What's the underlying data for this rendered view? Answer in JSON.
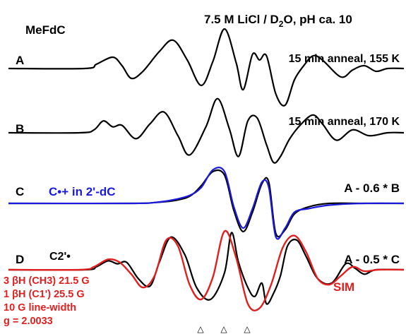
{
  "chart_data": {
    "type": "line",
    "sample_label": "MeFdC",
    "title": "7.5 M LiCl / D2O, pH ca. 10",
    "title_parts": {
      "main": "7.5 M LiCl / D",
      "sub": "2",
      "rest": "O, pH ca. 10"
    },
    "xlabel": "",
    "ylabel": "",
    "grid": false,
    "x_unit": "G",
    "xlim": [
      -85,
      85
    ],
    "panels": [
      {
        "id": "A",
        "annotation": "15 min anneal, 155 K"
      },
      {
        "id": "B",
        "annotation": "15 min anneal, 170 K"
      },
      {
        "id": "C",
        "annotation": "A - 0.6 * B",
        "legend": "C•+ in 2'-dC"
      },
      {
        "id": "D",
        "annotation": "A - 0.5 * C",
        "legend": "C2'•",
        "sim_label": "SIM"
      }
    ],
    "series": [
      {
        "name": "A",
        "color": "#000000",
        "x": [
          -85,
          -60,
          -55,
          -48,
          -44,
          -40,
          -35,
          -28,
          -22,
          -16,
          -10,
          -5,
          0,
          5,
          8,
          12,
          15,
          18,
          22,
          26,
          30,
          34,
          38,
          42,
          50,
          55,
          60,
          65,
          70,
          85
        ],
        "values": [
          0,
          0,
          0.3,
          0.8,
          0.2,
          -0.7,
          -0.2,
          1.2,
          2.0,
          0.6,
          -1.2,
          0.5,
          2.8,
          0.4,
          -1.5,
          1.0,
          0.6,
          0.9,
          -1.8,
          -2.6,
          -0.8,
          0.2,
          0.9,
          0.6,
          -0.6,
          -0.1,
          0.2,
          -0.2,
          0,
          0
        ]
      },
      {
        "name": "B",
        "color": "#000000",
        "x": [
          -85,
          -62,
          -56,
          -52,
          -48,
          -44,
          -38,
          -32,
          -26,
          -20,
          -15,
          -8,
          -3,
          2,
          6,
          10,
          14,
          18,
          21,
          24,
          28,
          33,
          38,
          42,
          48,
          55,
          62,
          70,
          85
        ],
        "values": [
          0,
          0,
          0.2,
          0.8,
          0.4,
          0.5,
          -0.4,
          0.6,
          1.4,
          -0.2,
          -1.5,
          0.4,
          2.3,
          0.3,
          -1.6,
          0.8,
          1.0,
          -0.8,
          -2.0,
          -1.6,
          -0.4,
          0.6,
          1.2,
          0.6,
          -0.5,
          0.2,
          -0.2,
          0,
          0
        ]
      },
      {
        "name": "C experimental",
        "color": "#000000",
        "x": [
          -85,
          -40,
          -30,
          -22,
          -15,
          -10,
          -5,
          0,
          4,
          8,
          12,
          16,
          19,
          22,
          26,
          30,
          36,
          45,
          60,
          85
        ],
        "values": [
          0,
          0,
          0.05,
          0.15,
          0.4,
          1.0,
          1.8,
          1.6,
          -0.4,
          -1.6,
          -0.5,
          1.1,
          1.2,
          -1.7,
          -1.5,
          -0.6,
          -0.2,
          0,
          0,
          0
        ]
      },
      {
        "name": "C•+ in 2'-dC",
        "color": "#1a1adc",
        "x": [
          -85,
          -40,
          -30,
          -22,
          -15,
          -10,
          -5,
          0,
          4,
          8,
          12,
          16,
          19,
          22,
          26,
          30,
          36,
          45,
          60,
          85
        ],
        "values": [
          0,
          0,
          0.05,
          0.2,
          0.45,
          0.9,
          1.9,
          1.8,
          -0.2,
          -1.4,
          -0.3,
          1.2,
          0.9,
          -1.9,
          -1.4,
          -0.5,
          -0.3,
          -0.1,
          0,
          0
        ]
      },
      {
        "name": "D experimental",
        "color": "#000000",
        "x": [
          -85,
          -60,
          -55,
          -50,
          -46,
          -42,
          -37,
          -32,
          -28,
          -23,
          -17,
          -12,
          -6,
          0,
          3,
          6,
          10,
          13,
          16,
          18,
          21,
          24,
          27,
          31,
          35,
          40,
          46,
          52,
          56,
          60,
          65,
          85
        ],
        "values": [
          0,
          0,
          0.2,
          0.6,
          0.4,
          0.5,
          -0.6,
          -1.1,
          0.5,
          2.2,
          1.0,
          -1.2,
          -2.0,
          -0.2,
          2.5,
          0.5,
          -1.2,
          -1.8,
          -0.9,
          -2.3,
          -1.6,
          -0.4,
          1.6,
          2.0,
          0.9,
          -0.6,
          -0.9,
          0.4,
          0.1,
          -0.3,
          0,
          0
        ]
      },
      {
        "name": "SIM",
        "color": "#e02020",
        "x": [
          -85,
          -62,
          -56,
          -50,
          -45,
          -40,
          -35,
          -30,
          -25,
          -20,
          -15,
          -10,
          -5,
          0,
          5,
          10,
          15,
          20,
          25,
          30,
          35,
          40,
          45,
          50,
          55,
          60,
          66,
          85
        ],
        "values": [
          0,
          0,
          0.2,
          0.7,
          0.5,
          -0.3,
          -1.2,
          -0.4,
          2.0,
          1.6,
          -1.0,
          -2.0,
          -0.5,
          2.6,
          0.8,
          -2.3,
          -2.6,
          -1.0,
          1.5,
          2.3,
          1.2,
          -0.6,
          -1.0,
          -0.4,
          0.2,
          -0.1,
          0,
          0
        ]
      }
    ],
    "sim_parameters": [
      "3 βH (CH3) 21.5 G",
      "1 βH (C1') 25.5 G",
      "10 G line-width",
      "g = 2.0033"
    ],
    "marker_glyph": "△",
    "markers_x": [
      -10,
      0,
      10
    ]
  }
}
